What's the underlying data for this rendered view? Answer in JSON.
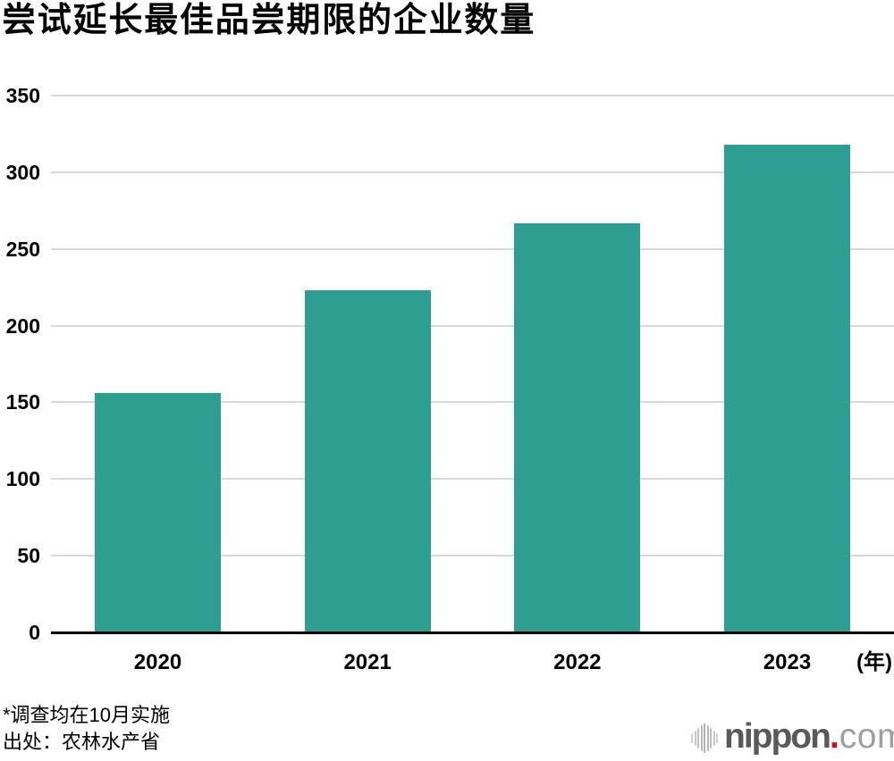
{
  "header": {
    "title": "尝试延长最佳品尝期限的企业数量"
  },
  "chart_data": {
    "type": "bar",
    "title": "尝试延长最佳品尝期限的企业数量",
    "categories": [
      "2020",
      "2021",
      "2022",
      "2023"
    ],
    "values": [
      156,
      223,
      267,
      318
    ],
    "xlabel": "(年)",
    "ylabel": "",
    "ylim": [
      0,
      350
    ],
    "yticks": [
      0,
      50,
      100,
      150,
      200,
      250,
      300,
      350
    ],
    "grid": true,
    "legend": "none",
    "bar_color": "#2d9e91",
    "gridline_color": "#d8d8d8",
    "axis_color": "#000000",
    "annotations": [
      "*调查均在10月实施",
      "出处：农林水产省"
    ]
  },
  "footer": {
    "note": "*调查均在10月实施",
    "source": "出处：农林水产省"
  },
  "logo": {
    "brand": "nippon",
    "dot": ".",
    "suffix": "com",
    "brand_color": "#58595b",
    "dot_color": "#e60012",
    "suffix_color": "#9d9fa2",
    "icon": "soundwave-bars-icon"
  }
}
